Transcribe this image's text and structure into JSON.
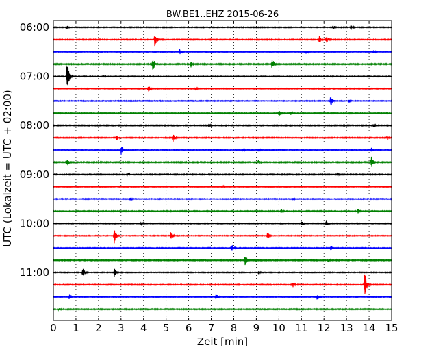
{
  "chart_data": {
    "type": "line",
    "title": "BW.BE1..EHZ 2015-06-26",
    "xlabel": "Zeit  [min]",
    "ylabel": "UTC (Lokalzeit = UTC + 02:00)",
    "xlim": [
      0,
      15
    ],
    "x_ticks": [
      "0",
      "1",
      "2",
      "3",
      "4",
      "5",
      "6",
      "7",
      "8",
      "9",
      "10",
      "11",
      "12",
      "13",
      "14",
      "15"
    ],
    "y_ticks": [
      {
        "label": "06:00",
        "row": 0
      },
      {
        "label": "07:00",
        "row": 4
      },
      {
        "label": "08:00",
        "row": 8
      },
      {
        "label": "09:00",
        "row": 12
      },
      {
        "label": "10:00",
        "row": 16
      },
      {
        "label": "11:00",
        "row": 20
      }
    ],
    "grid": "vertical dotted",
    "row_colors": [
      "#000000",
      "#ff0000",
      "#0000ff",
      "#008000"
    ],
    "series": [
      {
        "start": "06:00",
        "noise": 0.6,
        "events": [
          [
            0.6,
            3
          ],
          [
            12.4,
            4
          ],
          [
            13.2,
            5
          ]
        ]
      },
      {
        "start": "06:15",
        "noise": 0.7,
        "events": [
          [
            4.5,
            11
          ],
          [
            11.8,
            7
          ],
          [
            12.1,
            6
          ]
        ]
      },
      {
        "start": "06:30",
        "noise": 0.6,
        "events": [
          [
            5.6,
            5
          ],
          [
            11.2,
            4
          ],
          [
            14.2,
            3
          ]
        ]
      },
      {
        "start": "06:45",
        "noise": 0.8,
        "events": [
          [
            4.4,
            12
          ],
          [
            6.1,
            5
          ],
          [
            9.7,
            9
          ]
        ]
      },
      {
        "start": "07:00",
        "noise": 0.6,
        "events": [
          [
            0.6,
            22
          ],
          [
            2.2,
            3
          ]
        ]
      },
      {
        "start": "07:15",
        "noise": 0.6,
        "events": [
          [
            4.2,
            6
          ],
          [
            6.3,
            3
          ]
        ]
      },
      {
        "start": "07:30",
        "noise": 0.6,
        "events": [
          [
            12.3,
            11
          ],
          [
            13.1,
            3
          ]
        ]
      },
      {
        "start": "07:45",
        "noise": 0.7,
        "events": [
          [
            10.0,
            5
          ],
          [
            10.5,
            4
          ]
        ]
      },
      {
        "start": "08:00",
        "noise": 0.7,
        "events": [
          [
            6.9,
            3
          ],
          [
            14.2,
            3
          ]
        ]
      },
      {
        "start": "08:15",
        "noise": 0.7,
        "events": [
          [
            2.8,
            5
          ],
          [
            5.3,
            7
          ],
          [
            14.8,
            4
          ]
        ]
      },
      {
        "start": "08:30",
        "noise": 0.6,
        "events": [
          [
            3.0,
            9
          ],
          [
            8.4,
            3
          ],
          [
            9.1,
            3
          ],
          [
            14.1,
            4
          ]
        ]
      },
      {
        "start": "08:45",
        "noise": 0.8,
        "events": [
          [
            0.6,
            7
          ],
          [
            9.1,
            4
          ],
          [
            14.1,
            9
          ]
        ]
      },
      {
        "start": "09:00",
        "noise": 0.7,
        "events": [
          [
            3.3,
            3
          ],
          [
            12.6,
            3
          ]
        ]
      },
      {
        "start": "09:15",
        "noise": 0.6,
        "events": [
          [
            7.5,
            3
          ]
        ]
      },
      {
        "start": "09:30",
        "noise": 0.6,
        "events": [
          [
            3.4,
            3
          ],
          [
            10.6,
            3
          ]
        ]
      },
      {
        "start": "09:45",
        "noise": 0.7,
        "events": [
          [
            10.1,
            4
          ],
          [
            13.5,
            4
          ]
        ]
      },
      {
        "start": "10:00",
        "noise": 0.6,
        "events": [
          [
            3.9,
            4
          ],
          [
            11.0,
            5
          ],
          [
            12.1,
            4
          ]
        ]
      },
      {
        "start": "10:15",
        "noise": 0.6,
        "events": [
          [
            2.7,
            12
          ],
          [
            5.2,
            7
          ],
          [
            9.5,
            6
          ]
        ]
      },
      {
        "start": "10:30",
        "noise": 0.6,
        "events": [
          [
            7.9,
            7
          ],
          [
            12.3,
            4
          ]
        ]
      },
      {
        "start": "10:45",
        "noise": 0.8,
        "events": [
          [
            8.5,
            9
          ],
          [
            9.0,
            3
          ],
          [
            12.2,
            3
          ]
        ]
      },
      {
        "start": "11:00",
        "noise": 0.6,
        "events": [
          [
            1.3,
            7
          ],
          [
            2.7,
            7
          ],
          [
            9.1,
            3
          ]
        ]
      },
      {
        "start": "11:15",
        "noise": 0.7,
        "events": [
          [
            10.6,
            5
          ],
          [
            13.8,
            20
          ]
        ]
      },
      {
        "start": "11:30",
        "noise": 0.6,
        "events": [
          [
            0.7,
            4
          ],
          [
            7.2,
            6
          ],
          [
            11.7,
            6
          ]
        ]
      },
      {
        "start": "11:45",
        "noise": 0.7,
        "events": [
          [
            0.2,
            3
          ]
        ]
      }
    ]
  }
}
